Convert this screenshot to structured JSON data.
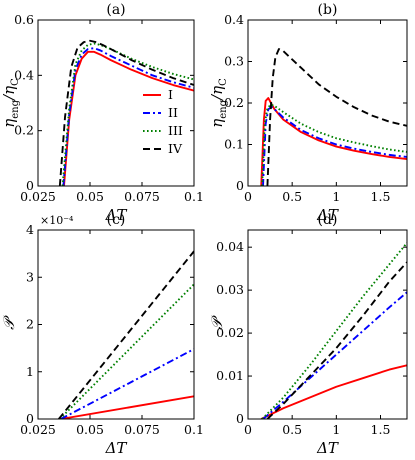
{
  "chart_data": [
    {
      "panel": "(a)",
      "type": "line",
      "xlabel": "ΔT",
      "ylabel": "η_eng/η_C",
      "xlim": [
        0.025,
        0.1
      ],
      "ylim": [
        0,
        0.6
      ],
      "xticks": [
        "0.025",
        "0.05",
        "0.075",
        "0.1"
      ],
      "yticks": [
        "0",
        "0.2",
        "0.4",
        "0.6"
      ],
      "legend": "center-right",
      "series": [
        {
          "name": "I",
          "color": "#ff0000",
          "dash": "solid",
          "x": [
            0.0375,
            0.04,
            0.043,
            0.046,
            0.049,
            0.052,
            0.055,
            0.06,
            0.07,
            0.08,
            0.09,
            0.1
          ],
          "y": [
            0,
            0.24,
            0.4,
            0.46,
            0.485,
            0.485,
            0.475,
            0.455,
            0.42,
            0.39,
            0.365,
            0.345
          ]
        },
        {
          "name": "II",
          "color": "#0000ff",
          "dash": "dashdot",
          "x": [
            0.0372,
            0.04,
            0.043,
            0.046,
            0.049,
            0.052,
            0.055,
            0.06,
            0.07,
            0.08,
            0.09,
            0.1
          ],
          "y": [
            0,
            0.26,
            0.42,
            0.475,
            0.495,
            0.498,
            0.49,
            0.47,
            0.435,
            0.4,
            0.375,
            0.355
          ]
        },
        {
          "name": "III",
          "color": "#008000",
          "dash": "dotted",
          "x": [
            0.0368,
            0.04,
            0.043,
            0.046,
            0.049,
            0.052,
            0.055,
            0.06,
            0.07,
            0.08,
            0.09,
            0.1
          ],
          "y": [
            0,
            0.28,
            0.44,
            0.49,
            0.51,
            0.515,
            0.51,
            0.495,
            0.46,
            0.43,
            0.405,
            0.385
          ]
        },
        {
          "name": "IV",
          "color": "#000000",
          "dash": "dashed",
          "x": [
            0.0355,
            0.038,
            0.041,
            0.044,
            0.047,
            0.05,
            0.053,
            0.056,
            0.06,
            0.07,
            0.08,
            0.09,
            0.1
          ],
          "y": [
            0,
            0.25,
            0.43,
            0.5,
            0.52,
            0.525,
            0.52,
            0.51,
            0.495,
            0.455,
            0.42,
            0.39,
            0.365
          ]
        }
      ]
    },
    {
      "panel": "(b)",
      "type": "line",
      "xlabel": "ΔT",
      "ylabel": "η_eng/η_C",
      "xlim": [
        0,
        1.8
      ],
      "ylim": [
        0,
        0.4
      ],
      "xticks": [
        "0",
        "0.5",
        "1",
        "1.5"
      ],
      "yticks": [
        "0",
        "0.1",
        "0.2",
        "0.3",
        "0.4"
      ],
      "series": [
        {
          "name": "I",
          "color": "#ff0000",
          "dash": "solid",
          "x": [
            0.15,
            0.18,
            0.2,
            0.23,
            0.26,
            0.3,
            0.4,
            0.6,
            0.8,
            1.0,
            1.2,
            1.4,
            1.6,
            1.8
          ],
          "y": [
            0,
            0.16,
            0.205,
            0.212,
            0.2,
            0.185,
            0.16,
            0.13,
            0.11,
            0.095,
            0.085,
            0.077,
            0.07,
            0.065
          ]
        },
        {
          "name": "II",
          "color": "#0000ff",
          "dash": "dashdot",
          "x": [
            0.17,
            0.2,
            0.23,
            0.27,
            0.3,
            0.4,
            0.6,
            0.8,
            1.0,
            1.2,
            1.4,
            1.6,
            1.8
          ],
          "y": [
            0,
            0.15,
            0.185,
            0.19,
            0.185,
            0.165,
            0.135,
            0.115,
            0.1,
            0.09,
            0.082,
            0.075,
            0.07
          ]
        },
        {
          "name": "III",
          "color": "#008000",
          "dash": "dotted",
          "x": [
            0.16,
            0.19,
            0.22,
            0.26,
            0.3,
            0.4,
            0.6,
            0.8,
            1.0,
            1.2,
            1.4,
            1.6,
            1.8
          ],
          "y": [
            0,
            0.15,
            0.188,
            0.196,
            0.193,
            0.178,
            0.15,
            0.13,
            0.115,
            0.105,
            0.096,
            0.088,
            0.082
          ]
        },
        {
          "name": "IV",
          "color": "#000000",
          "dash": "dashed",
          "x": [
            0.22,
            0.25,
            0.28,
            0.31,
            0.35,
            0.4,
            0.5,
            0.6,
            0.8,
            1.0,
            1.2,
            1.4,
            1.6,
            1.8
          ],
          "y": [
            0,
            0.16,
            0.26,
            0.31,
            0.33,
            0.325,
            0.305,
            0.285,
            0.245,
            0.215,
            0.19,
            0.17,
            0.155,
            0.145
          ]
        }
      ]
    },
    {
      "panel": "(c)",
      "type": "line",
      "xlabel": "ΔT",
      "ylabel": "𝒫",
      "multiplier": "×10⁻⁴",
      "xlim": [
        0.025,
        0.1
      ],
      "ylim": [
        0,
        4
      ],
      "xticks": [
        "0.025",
        "0.05",
        "0.075",
        "0.1"
      ],
      "yticks": [
        "0",
        "1",
        "2",
        "3",
        "4"
      ],
      "series": [
        {
          "name": "I",
          "color": "#ff0000",
          "dash": "solid",
          "x": [
            0.036,
            0.1
          ],
          "y": [
            0,
            0.48
          ]
        },
        {
          "name": "II",
          "color": "#0000ff",
          "dash": "dashdot",
          "x": [
            0.036,
            0.1
          ],
          "y": [
            0,
            1.48
          ]
        },
        {
          "name": "III",
          "color": "#008000",
          "dash": "dotted",
          "x": [
            0.0355,
            0.1
          ],
          "y": [
            0,
            2.85
          ]
        },
        {
          "name": "IV",
          "color": "#000000",
          "dash": "dashed",
          "x": [
            0.035,
            0.1
          ],
          "y": [
            0,
            3.55
          ]
        }
      ]
    },
    {
      "panel": "(d)",
      "type": "line",
      "xlabel": "ΔT",
      "ylabel": "𝒫",
      "xlim": [
        0,
        1.8
      ],
      "ylim": [
        0,
        0.044
      ],
      "xticks": [
        "0",
        "0.5",
        "1",
        "1.5"
      ],
      "yticks": [
        "0",
        "0.01",
        "0.02",
        "0.03",
        "0.04"
      ],
      "series": [
        {
          "name": "I",
          "color": "#ff0000",
          "dash": "solid",
          "x": [
            0.15,
            0.4,
            0.7,
            1.0,
            1.3,
            1.6,
            1.8
          ],
          "y": [
            0,
            0.0025,
            0.005,
            0.0075,
            0.0095,
            0.0115,
            0.0125
          ]
        },
        {
          "name": "II",
          "color": "#0000ff",
          "dash": "dashdot",
          "x": [
            0.17,
            0.4,
            0.7,
            1.0,
            1.3,
            1.6,
            1.8
          ],
          "y": [
            0,
            0.004,
            0.0095,
            0.015,
            0.0205,
            0.026,
            0.0295
          ]
        },
        {
          "name": "III",
          "color": "#008000",
          "dash": "dotted",
          "x": [
            0.16,
            0.4,
            0.7,
            1.0,
            1.3,
            1.6,
            1.8
          ],
          "y": [
            0,
            0.005,
            0.0125,
            0.0205,
            0.0285,
            0.036,
            0.041
          ]
        },
        {
          "name": "IV",
          "color": "#000000",
          "dash": "dashed",
          "x": [
            0.22,
            0.4,
            0.7,
            1.0,
            1.3,
            1.6,
            1.8
          ],
          "y": [
            0,
            0.0035,
            0.01,
            0.0165,
            0.024,
            0.032,
            0.0365
          ]
        }
      ]
    }
  ]
}
